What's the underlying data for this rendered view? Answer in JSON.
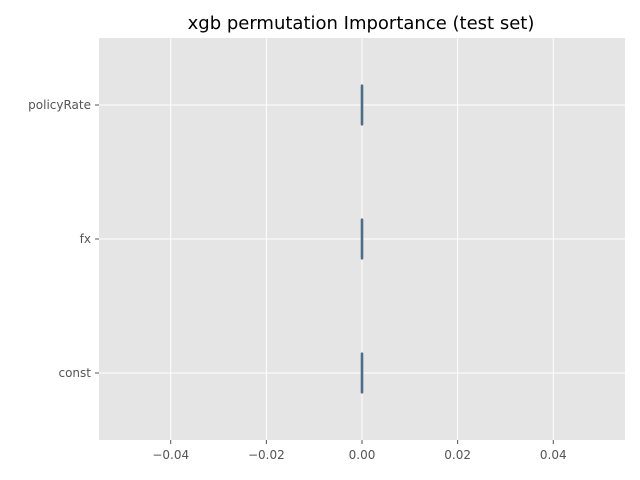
{
  "chart_data": {
    "type": "box",
    "title": "xgb permutation Importance (test set)",
    "orientation": "horizontal",
    "categories": [
      "policyRate",
      "fx",
      "const"
    ],
    "boxes": [
      {
        "category": "policyRate",
        "min": 0.0,
        "q1": 0.0,
        "median": 0.0,
        "q3": 0.0,
        "max": 0.0
      },
      {
        "category": "fx",
        "min": 0.0,
        "q1": 0.0,
        "median": 0.0,
        "q3": 0.0,
        "max": 0.0
      },
      {
        "category": "const",
        "min": 0.0,
        "q1": 0.0,
        "median": 0.0,
        "q3": 0.0,
        "max": 0.0
      }
    ],
    "xlim": [
      -0.055,
      0.055
    ],
    "xticks": [
      -0.04,
      -0.02,
      0.0,
      0.02,
      0.04
    ],
    "xtick_labels": [
      "−0.04",
      "−0.02",
      "0.00",
      "0.02",
      "0.04"
    ],
    "grid": true,
    "colors": {
      "background": "#e5e5e5",
      "grid": "#ffffff",
      "box": "#348abd",
      "box_edge": "#4c6e8a",
      "text": "#555555"
    }
  }
}
